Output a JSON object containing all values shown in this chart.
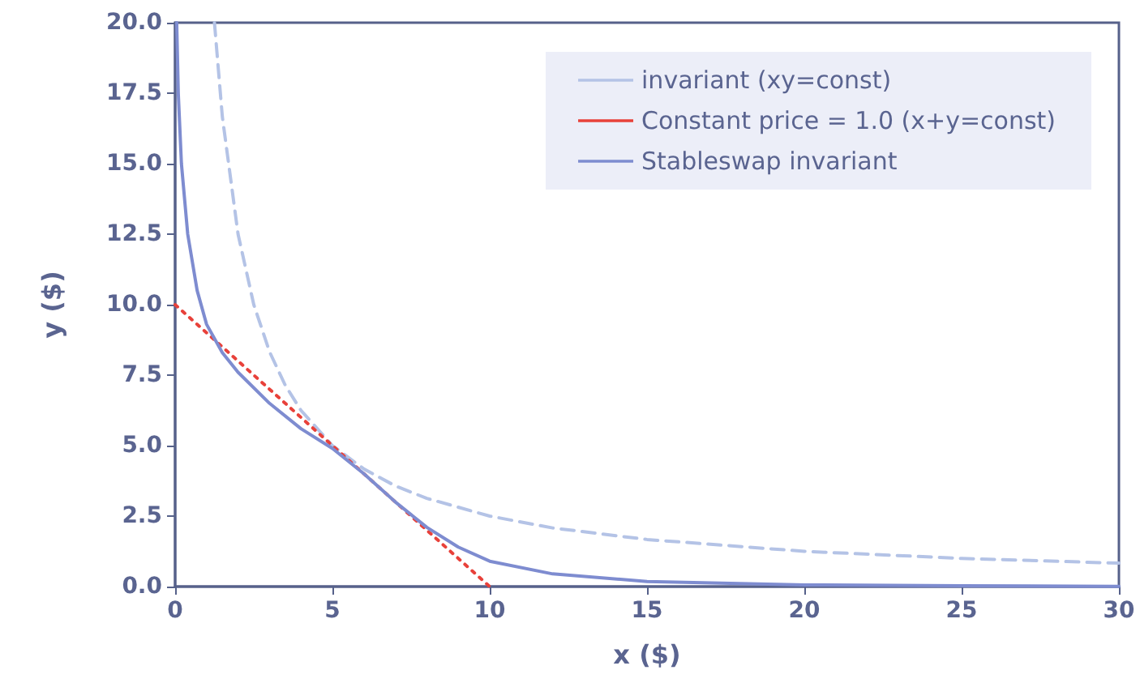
{
  "chart_data": {
    "type": "line",
    "xlabel": "x ($)",
    "ylabel": "y ($)",
    "xlim": [
      0,
      30
    ],
    "xticks": [
      0,
      5,
      10,
      15,
      20,
      25,
      30
    ],
    "ylim": [
      0,
      20
    ],
    "yticks": [
      {
        "value": 0,
        "label": "0.0"
      },
      {
        "value": 2.5,
        "label": "2.5"
      },
      {
        "value": 5,
        "label": "5.0"
      },
      {
        "value": 7.5,
        "label": "7.5"
      },
      {
        "value": 10,
        "label": "10.0"
      },
      {
        "value": 12.5,
        "label": "12.5"
      },
      {
        "value": 15,
        "label": "15.0"
      },
      {
        "value": 17.5,
        "label": "17.5"
      },
      {
        "value": 20,
        "label": "20.0"
      }
    ],
    "grid": false,
    "legend": "top right",
    "marker": "none",
    "series": [
      {
        "name": "invariant (xy=const)",
        "color": "#b4c3e6",
        "line_style": "dashed",
        "x": [
          1.25,
          1.5,
          2,
          2.5,
          3,
          3.5,
          4,
          5,
          6,
          7,
          8,
          10,
          12,
          15,
          20,
          25,
          30
        ],
        "values": [
          20,
          16.67,
          12.5,
          10,
          8.33,
          7.14,
          6.25,
          5,
          4.17,
          3.57,
          3.13,
          2.5,
          2.08,
          1.67,
          1.25,
          1,
          0.83
        ]
      },
      {
        "name": "Constant price = 1.0 (x+y=const)",
        "color": "#e8413a",
        "line_style": "dotted",
        "x": [
          0,
          10
        ],
        "values": [
          10,
          0
        ]
      },
      {
        "name": "Stableswap invariant",
        "color": "#7e8cd0",
        "line_style": "solid",
        "x": [
          0.05,
          0.1,
          0.2,
          0.4,
          0.7,
          1,
          1.5,
          2,
          3,
          4,
          5,
          6,
          7,
          8,
          9,
          10,
          12,
          15,
          20,
          25,
          30
        ],
        "values": [
          20,
          17.5,
          15,
          12.5,
          10.5,
          9.3,
          8.3,
          7.6,
          6.5,
          5.6,
          4.9,
          4,
          3,
          2.1,
          1.4,
          0.9,
          0.45,
          0.18,
          0.06,
          0.03,
          0.01
        ]
      }
    ]
  }
}
